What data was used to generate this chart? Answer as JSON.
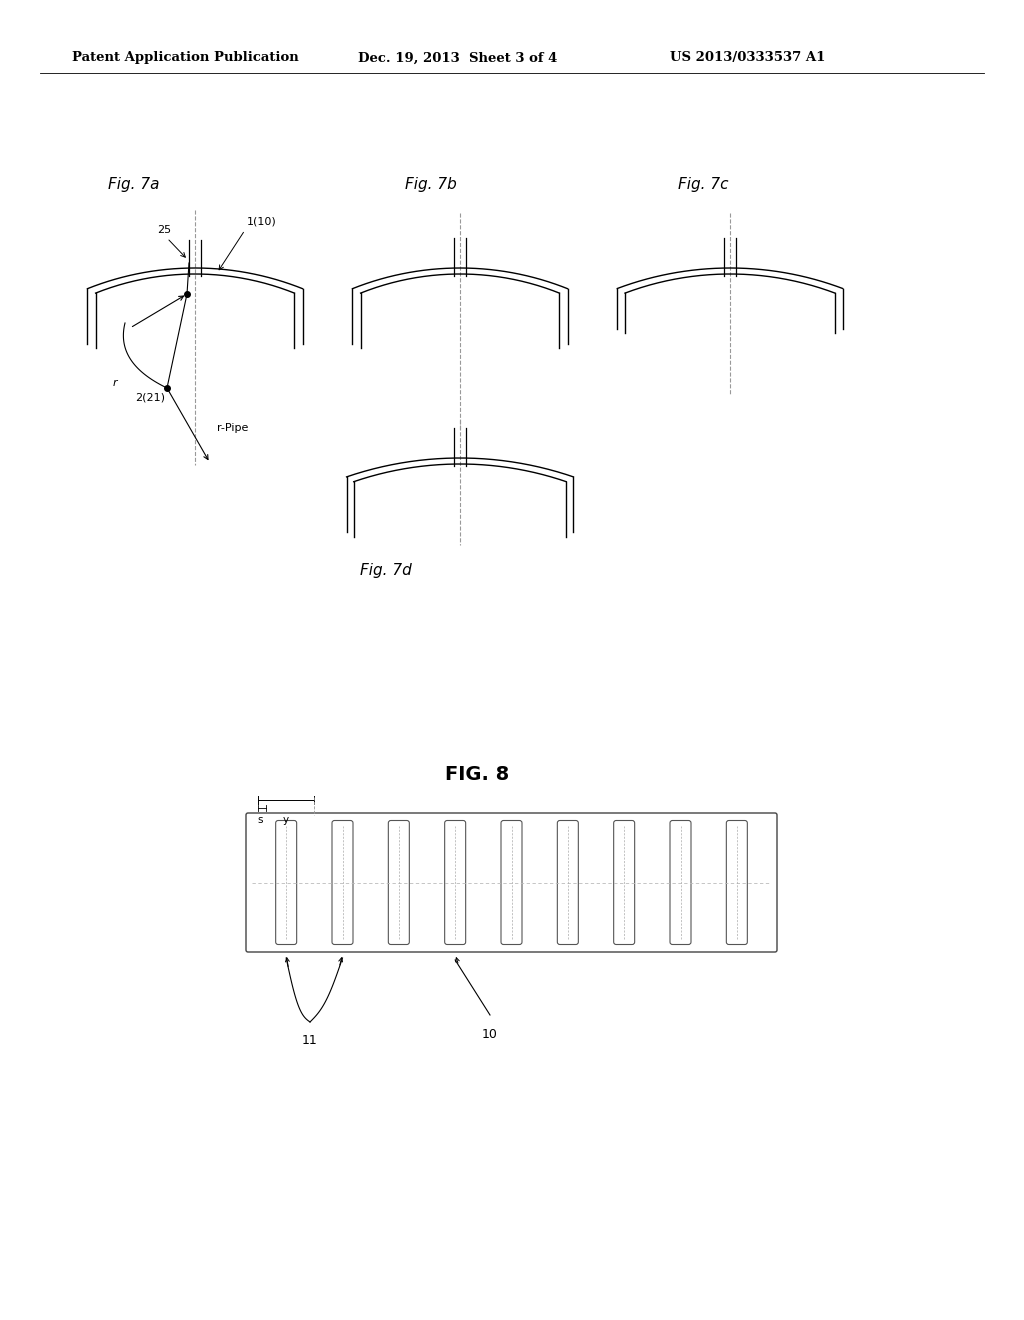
{
  "bg_color": "#ffffff",
  "header_text": "Patent Application Publication",
  "header_date": "Dec. 19, 2013  Sheet 3 of 4",
  "header_patent": "US 2013/0333537 A1",
  "fig7a_label": "Fig. 7a",
  "fig7b_label": "Fig. 7b",
  "fig7c_label": "Fig. 7c",
  "fig7d_label": "Fig. 7d",
  "fig8_label": "FIG. 8",
  "label_25": "25",
  "label_1_10": "1(10)",
  "label_2_21": "2(21)",
  "label_r_pipe": "r-Pipe",
  "label_r": "r",
  "label_s": "s",
  "label_y": "y",
  "label_11": "11",
  "label_10": "10",
  "text_color": "#000000",
  "line_color": "#000000",
  "dashed_color": "#999999"
}
